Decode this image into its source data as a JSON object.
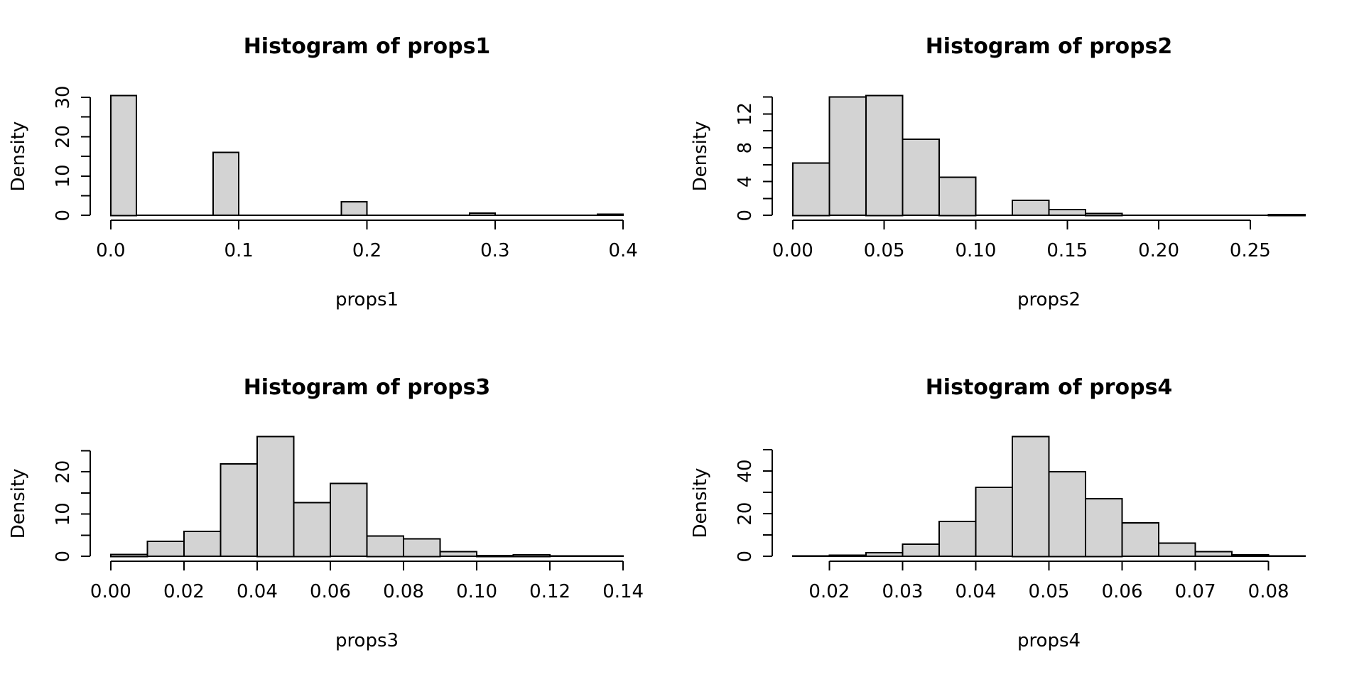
{
  "page": {
    "background": "#ffffff"
  },
  "style": {
    "bar_fill": "#d3d3d3",
    "bar_stroke": "#000000",
    "axis_color": "#000000",
    "text_color": "#000000"
  },
  "chart_data": [
    {
      "type": "bar",
      "subtype": "histogram",
      "title": "Histogram of props1",
      "xlabel": "props1",
      "ylabel": "Density",
      "bin_start": 0.0,
      "bin_width": 0.02,
      "heights": [
        30.5,
        0,
        0,
        0,
        16,
        0,
        0,
        0,
        0,
        3.5,
        0,
        0,
        0,
        0,
        0.6,
        0,
        0,
        0,
        0,
        0.35
      ],
      "xlim": [
        0.0,
        0.4
      ],
      "ylim": [
        0,
        30.5
      ],
      "grid": false,
      "x_ticks": {
        "values": [
          0.0,
          0.1,
          0.2,
          0.3,
          0.4
        ],
        "labels": [
          "0.0",
          "0.1",
          "0.2",
          "0.3",
          "0.4"
        ]
      },
      "y_ticks": {
        "values": [
          0,
          5,
          10,
          15,
          20,
          25,
          30
        ],
        "label_values": [
          0,
          10,
          20,
          30
        ],
        "labels": [
          "0",
          "10",
          "20",
          "30"
        ]
      }
    },
    {
      "type": "bar",
      "subtype": "histogram",
      "title": "Histogram of props2",
      "xlabel": "props2",
      "ylabel": "Density",
      "bin_start": 0.0,
      "bin_width": 0.02,
      "heights": [
        6.2,
        14.0,
        14.2,
        9.0,
        4.5,
        0,
        1.8,
        0.7,
        0.25,
        0,
        0,
        0,
        0,
        0.1
      ],
      "xlim": [
        0.0,
        0.28
      ],
      "ylim": [
        0,
        14.2
      ],
      "grid": false,
      "x_ticks": {
        "values": [
          0.0,
          0.05,
          0.1,
          0.15,
          0.2,
          0.25
        ],
        "labels": [
          "0.00",
          "0.05",
          "0.10",
          "0.15",
          "0.20",
          "0.25"
        ]
      },
      "y_ticks": {
        "values": [
          0,
          2,
          4,
          6,
          8,
          10,
          12,
          14
        ],
        "label_values": [
          0,
          4,
          8,
          12
        ],
        "labels": [
          "0",
          "4",
          "8",
          "12"
        ]
      }
    },
    {
      "type": "bar",
      "subtype": "histogram",
      "title": "Histogram of props3",
      "xlabel": "props3",
      "ylabel": "Density",
      "bin_start": 0.0,
      "bin_width": 0.01,
      "heights": [
        0.5,
        3.6,
        5.9,
        21.9,
        28.4,
        12.7,
        17.3,
        4.8,
        4.2,
        1.1,
        0.2,
        0.4,
        0.15,
        0.15
      ],
      "xlim": [
        0.0,
        0.14
      ],
      "ylim": [
        0,
        28.4
      ],
      "grid": false,
      "x_ticks": {
        "values": [
          0.0,
          0.02,
          0.04,
          0.06,
          0.08,
          0.1,
          0.12,
          0.14
        ],
        "labels": [
          "0.00",
          "0.02",
          "0.04",
          "0.06",
          "0.08",
          "0.10",
          "0.12",
          "0.14"
        ]
      },
      "y_ticks": {
        "values": [
          0,
          5,
          10,
          15,
          20,
          25
        ],
        "label_values": [
          0,
          10,
          20
        ],
        "labels": [
          "0",
          "10",
          "20"
        ]
      }
    },
    {
      "type": "bar",
      "subtype": "histogram",
      "title": "Histogram of props4",
      "xlabel": "props4",
      "ylabel": "Density",
      "bin_start": 0.015,
      "bin_width": 0.005,
      "heights": [
        0.2,
        0.5,
        1.8,
        5.8,
        16.4,
        32.3,
        56.2,
        39.7,
        27.0,
        15.7,
        6.2,
        2.3,
        0.7,
        0.3
      ],
      "xlim": [
        0.015,
        0.085
      ],
      "ylim": [
        0,
        56.2
      ],
      "grid": false,
      "x_ticks": {
        "values": [
          0.02,
          0.03,
          0.04,
          0.05,
          0.06,
          0.07,
          0.08
        ],
        "labels": [
          "0.02",
          "0.03",
          "0.04",
          "0.05",
          "0.06",
          "0.07",
          "0.08"
        ]
      },
      "y_ticks": {
        "values": [
          0,
          10,
          20,
          30,
          40,
          50
        ],
        "label_values": [
          0,
          20,
          40
        ],
        "labels": [
          "0",
          "20",
          "40"
        ]
      }
    }
  ]
}
